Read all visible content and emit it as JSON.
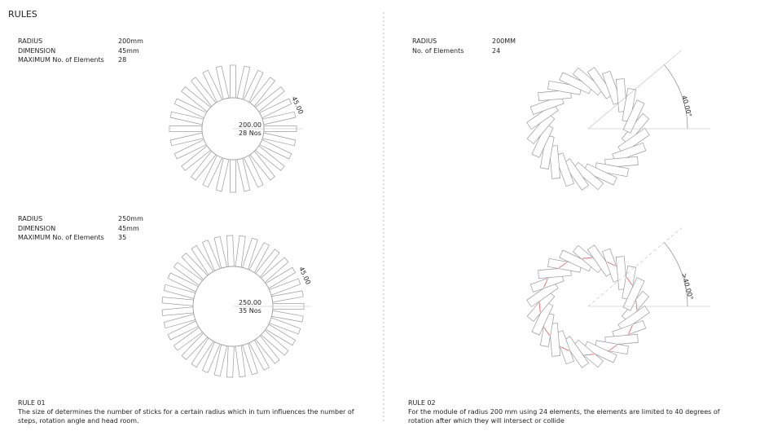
{
  "header": {
    "title": "RULES"
  },
  "panels": [
    {
      "specs": [
        {
          "label": "RADIUS",
          "value": "200mm"
        },
        {
          "label": "DIMENSION",
          "value": "45mm"
        },
        {
          "label": "MAXIMUM No. of Elements",
          "value": "28"
        }
      ],
      "center_labels": [
        "200.00",
        "28 Nos"
      ],
      "dimension_label": "45.00"
    },
    {
      "specs": [
        {
          "label": "RADIUS",
          "value": "250mm"
        },
        {
          "label": "DIMENSION",
          "value": "45mm"
        },
        {
          "label": "MAXIMUM No. of Elements",
          "value": "35"
        }
      ],
      "center_labels": [
        "250.00",
        "35 Nos"
      ],
      "dimension_label": "45.00"
    },
    {
      "specs": [
        {
          "label": "RADIUS",
          "value": "200MM"
        },
        {
          "label": "No. of Elements",
          "value": "24"
        }
      ],
      "angle_label": "40.00°"
    },
    {
      "angle_label": ">40.00°"
    }
  ],
  "rules": [
    {
      "title": "RULE 01",
      "text": "The size of  determines  the number  of sticks for a certain radius which  in turn influences the number of steps, rotation angle and head room."
    },
    {
      "title": "RULE 02",
      "text": "For  the module of radius  200 mm using  24 elements, the elements are limited to 40 degrees  of rotation after which  they will intersect or collide"
    }
  ]
}
